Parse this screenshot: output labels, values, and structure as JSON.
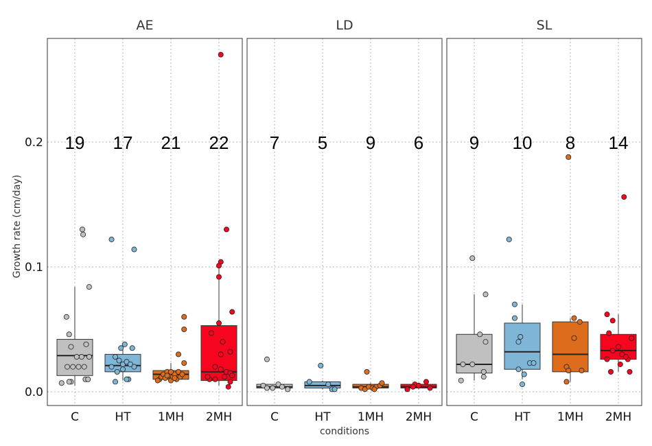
{
  "chart_data": {
    "type": "boxplot",
    "ylabel": "Growth rate (cm/day)",
    "xlabel": "conditions",
    "ylim": [
      -0.011,
      0.283
    ],
    "yticks": [
      0.0,
      0.1,
      0.2
    ],
    "ytick_labels": [
      "0.0",
      "0.1",
      "0.2"
    ],
    "count_label_y": 0.2,
    "categories": [
      "C",
      "HT",
      "1MH",
      "2MH"
    ],
    "category_colors": {
      "C": "#c0c0c0",
      "HT": "#7fb5d7",
      "1MH": "#dd6d1c",
      "2MH": "#f7041f"
    },
    "grid": true,
    "panels": [
      {
        "name": "AE",
        "groups": [
          {
            "category": "C",
            "n": "19",
            "stats": {
              "min": 0.005,
              "q1": 0.013,
              "median": 0.029,
              "q3": 0.042,
              "max": 0.084
            },
            "points": [
              [
                -0.35,
                0.007
              ],
              [
                -0.22,
                0.06
              ],
              [
                -0.15,
                0.046
              ],
              [
                -0.1,
                0.036
              ],
              [
                -0.2,
                0.02
              ],
              [
                -0.05,
                0.02
              ],
              [
                0.05,
                0.028
              ],
              [
                0.1,
                0.02
              ],
              [
                0.18,
                0.028
              ],
              [
                0.25,
                0.02
              ],
              [
                0.3,
                0.038
              ],
              [
                0.28,
                0.01
              ],
              [
                0.2,
                0.13
              ],
              [
                0.22,
                0.126
              ],
              [
                0.38,
                0.084
              ],
              [
                0.38,
                0.028
              ],
              [
                -0.1,
                0.008
              ],
              [
                -0.15,
                0.008
              ],
              [
                0.35,
                0.01
              ]
            ]
          },
          {
            "category": "HT",
            "n": "17",
            "stats": {
              "min": 0.009,
              "q1": 0.016,
              "median": 0.021,
              "q3": 0.03,
              "max": 0.037
            },
            "points": [
              [
                -0.3,
                0.122
              ],
              [
                0.3,
                0.114
              ],
              [
                -0.3,
                0.02
              ],
              [
                -0.2,
                0.028
              ],
              [
                -0.1,
                0.025
              ],
              [
                0.0,
                0.022
              ],
              [
                0.1,
                0.024
              ],
              [
                0.2,
                0.022
              ],
              [
                0.3,
                0.02
              ],
              [
                -0.05,
                0.035
              ],
              [
                0.05,
                0.038
              ],
              [
                -0.2,
                0.008
              ],
              [
                0.15,
                0.01
              ],
              [
                0.0,
                0.018
              ],
              [
                -0.15,
                0.016
              ],
              [
                0.25,
                0.035
              ],
              [
                0.1,
                0.01
              ]
            ]
          },
          {
            "category": "1MH",
            "n": "21",
            "stats": {
              "min": 0.008,
              "q1": 0.01,
              "median": 0.014,
              "q3": 0.017,
              "max": 0.023
            },
            "points": [
              [
                0.35,
                0.06
              ],
              [
                0.35,
                0.05
              ],
              [
                0.2,
                0.03
              ],
              [
                0.35,
                0.023
              ],
              [
                -0.3,
                0.01
              ],
              [
                -0.25,
                0.012
              ],
              [
                -0.2,
                0.014
              ],
              [
                -0.15,
                0.011
              ],
              [
                -0.1,
                0.016
              ],
              [
                -0.05,
                0.013
              ],
              [
                0.0,
                0.009
              ],
              [
                0.05,
                0.012
              ],
              [
                0.1,
                0.014
              ],
              [
                0.15,
                0.01
              ],
              [
                0.2,
                0.016
              ],
              [
                0.25,
                0.012
              ],
              [
                0.3,
                0.014
              ],
              [
                -0.35,
                0.009
              ],
              [
                0.0,
                0.016
              ],
              [
                -0.1,
                0.013
              ],
              [
                0.1,
                0.011
              ]
            ]
          },
          {
            "category": "2MH",
            "n": "22",
            "stats": {
              "min": 0.005,
              "q1": 0.009,
              "median": 0.016,
              "q3": 0.053,
              "max": 0.103
            },
            "points": [
              [
                0.05,
                0.27
              ],
              [
                0.2,
                0.13
              ],
              [
                0.05,
                0.104
              ],
              [
                0.0,
                0.101
              ],
              [
                0.0,
                0.092
              ],
              [
                -0.2,
                0.047
              ],
              [
                0.0,
                0.055
              ],
              [
                0.1,
                0.04
              ],
              [
                0.3,
                0.032
              ],
              [
                0.35,
                0.064
              ],
              [
                0.05,
                0.03
              ],
              [
                -0.1,
                0.02
              ],
              [
                0.2,
                0.016
              ],
              [
                -0.25,
                0.01
              ],
              [
                -0.1,
                0.01
              ],
              [
                0.15,
                0.012
              ],
              [
                0.3,
                0.008
              ],
              [
                0.25,
                0.004
              ],
              [
                0.3,
                0.015
              ],
              [
                -0.3,
                0.012
              ],
              [
                0.05,
                0.018
              ],
              [
                0.35,
                0.013
              ]
            ]
          }
        ]
      },
      {
        "name": "LD",
        "groups": [
          {
            "category": "C",
            "n": "7",
            "stats": {
              "min": 0.002,
              "q1": 0.003,
              "median": 0.004,
              "q3": 0.006,
              "max": 0.006
            },
            "points": [
              [
                -0.2,
                0.026
              ],
              [
                -0.3,
                0.005
              ],
              [
                -0.2,
                0.003
              ],
              [
                -0.05,
                0.003
              ],
              [
                0.1,
                0.006
              ],
              [
                0.2,
                0.004
              ],
              [
                0.35,
                0.002
              ]
            ]
          },
          {
            "category": "HT",
            "n": "5",
            "stats": {
              "min": 0.002,
              "q1": 0.003,
              "median": 0.005,
              "q3": 0.008,
              "max": 0.009
            },
            "points": [
              [
                -0.05,
                0.021
              ],
              [
                -0.35,
                0.008
              ],
              [
                0.15,
                0.006
              ],
              [
                0.25,
                0.002
              ],
              [
                0.32,
                0.002
              ]
            ]
          },
          {
            "category": "1MH",
            "n": "9",
            "stats": {
              "min": 0.002,
              "q1": 0.003,
              "median": 0.004,
              "q3": 0.006,
              "max": 0.007
            },
            "points": [
              [
                -0.1,
                0.016
              ],
              [
                -0.25,
                0.003
              ],
              [
                -0.15,
                0.002
              ],
              [
                -0.05,
                0.004
              ],
              [
                0.05,
                0.003
              ],
              [
                0.15,
                0.004
              ],
              [
                0.25,
                0.005
              ],
              [
                0.3,
                0.007
              ],
              [
                0.1,
                0.002
              ]
            ]
          },
          {
            "category": "2MH",
            "n": "6",
            "stats": {
              "min": 0.002,
              "q1": 0.003,
              "median": 0.004,
              "q3": 0.006,
              "max": 0.006
            },
            "points": [
              [
                0.2,
                0.008
              ],
              [
                -0.1,
                0.006
              ],
              [
                -0.3,
                0.002
              ],
              [
                -0.15,
                0.004
              ],
              [
                0.0,
                0.005
              ],
              [
                0.3,
                0.003
              ]
            ]
          }
        ]
      },
      {
        "name": "SL",
        "groups": [
          {
            "category": "C",
            "n": "9",
            "stats": {
              "min": 0.009,
              "q1": 0.015,
              "median": 0.022,
              "q3": 0.046,
              "max": 0.078
            },
            "points": [
              [
                -0.05,
                0.107
              ],
              [
                0.3,
                0.078
              ],
              [
                0.15,
                0.046
              ],
              [
                0.3,
                0.04
              ],
              [
                -0.3,
                0.022
              ],
              [
                -0.05,
                0.022
              ],
              [
                0.25,
                0.016
              ],
              [
                0.25,
                0.012
              ],
              [
                -0.35,
                0.009
              ]
            ]
          },
          {
            "category": "HT",
            "n": "10",
            "stats": {
              "min": 0.01,
              "q1": 0.018,
              "median": 0.032,
              "q3": 0.055,
              "max": 0.07
            },
            "points": [
              [
                -0.35,
                0.122
              ],
              [
                -0.2,
                0.07
              ],
              [
                -0.2,
                0.059
              ],
              [
                -0.05,
                0.044
              ],
              [
                -0.1,
                0.04
              ],
              [
                0.2,
                0.023
              ],
              [
                0.3,
                0.023
              ],
              [
                -0.1,
                0.018
              ],
              [
                0.05,
                0.014
              ],
              [
                0.0,
                0.006
              ]
            ]
          },
          {
            "category": "1MH",
            "n": "8",
            "stats": {
              "min": 0.008,
              "q1": 0.016,
              "median": 0.03,
              "q3": 0.056,
              "max": 0.059
            },
            "points": [
              [
                -0.05,
                0.188
              ],
              [
                0.1,
                0.059
              ],
              [
                0.25,
                0.056
              ],
              [
                0.1,
                0.043
              ],
              [
                -0.1,
                0.02
              ],
              [
                0.3,
                0.017
              ],
              [
                -0.05,
                0.017
              ],
              [
                -0.1,
                0.008
              ]
            ]
          },
          {
            "category": "2MH",
            "n": "14",
            "stats": {
              "min": 0.016,
              "q1": 0.026,
              "median": 0.033,
              "q3": 0.046,
              "max": 0.062
            },
            "points": [
              [
                0.15,
                0.156
              ],
              [
                -0.3,
                0.062
              ],
              [
                -0.15,
                0.057
              ],
              [
                -0.25,
                0.047
              ],
              [
                0.35,
                0.043
              ],
              [
                0.0,
                0.036
              ],
              [
                -0.15,
                0.033
              ],
              [
                0.1,
                0.03
              ],
              [
                0.25,
                0.026
              ],
              [
                -0.3,
                0.026
              ],
              [
                0.05,
                0.022
              ],
              [
                -0.2,
                0.016
              ],
              [
                0.3,
                0.016
              ],
              [
                0.2,
                0.028
              ]
            ]
          }
        ]
      }
    ]
  }
}
